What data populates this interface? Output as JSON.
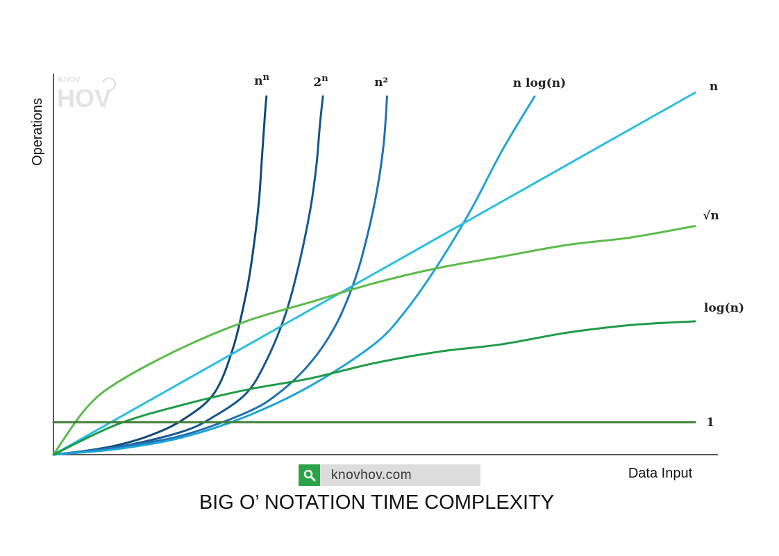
{
  "chart_data": {
    "type": "line",
    "title": "BIG O’ NOTATION TIME COMPLEXITY",
    "xlabel": "Data Input",
    "ylabel": "Operations",
    "grid": false,
    "legend": "curve-end labels",
    "series": [
      {
        "name": "nⁿ",
        "label_base": "n",
        "label_sup": "n",
        "color": "#0f4a79",
        "points": [
          [
            0,
            0
          ],
          [
            0.05,
            0.01
          ],
          [
            0.1,
            0.025
          ],
          [
            0.15,
            0.05
          ],
          [
            0.2,
            0.09
          ],
          [
            0.25,
            0.16
          ],
          [
            0.28,
            0.28
          ],
          [
            0.3,
            0.42
          ],
          [
            0.31,
            0.52
          ],
          [
            0.32,
            0.66
          ],
          [
            0.325,
            0.78
          ],
          [
            0.33,
            0.9
          ],
          [
            0.332,
            0.94
          ]
        ]
      },
      {
        "name": "2ⁿ",
        "label_base": "2",
        "label_sup": "n",
        "color": "#16568f",
        "points": [
          [
            0,
            0
          ],
          [
            0.1,
            0.02
          ],
          [
            0.2,
            0.06
          ],
          [
            0.25,
            0.1
          ],
          [
            0.3,
            0.16
          ],
          [
            0.33,
            0.24
          ],
          [
            0.36,
            0.36
          ],
          [
            0.38,
            0.48
          ],
          [
            0.4,
            0.64
          ],
          [
            0.41,
            0.76
          ],
          [
            0.415,
            0.86
          ],
          [
            0.42,
            0.94
          ]
        ]
      },
      {
        "name": "n²",
        "label_base": "n²",
        "color": "#1f72b2",
        "points": [
          [
            0,
            0
          ],
          [
            0.1,
            0.02
          ],
          [
            0.2,
            0.05
          ],
          [
            0.3,
            0.11
          ],
          [
            0.35,
            0.16
          ],
          [
            0.4,
            0.24
          ],
          [
            0.44,
            0.34
          ],
          [
            0.47,
            0.46
          ],
          [
            0.49,
            0.58
          ],
          [
            0.505,
            0.7
          ],
          [
            0.515,
            0.82
          ],
          [
            0.52,
            0.94
          ]
        ]
      },
      {
        "name": "n log(n)",
        "label_base": "n log(n)",
        "color": "#1fa3d8",
        "points": [
          [
            0,
            0
          ],
          [
            0.1,
            0.015
          ],
          [
            0.2,
            0.045
          ],
          [
            0.3,
            0.1
          ],
          [
            0.4,
            0.18
          ],
          [
            0.5,
            0.29
          ],
          [
            0.55,
            0.38
          ],
          [
            0.6,
            0.5
          ],
          [
            0.65,
            0.64
          ],
          [
            0.7,
            0.8
          ],
          [
            0.75,
            0.94
          ]
        ]
      },
      {
        "name": "n",
        "label_base": "n",
        "color": "#29bde3",
        "points": [
          [
            0,
            0
          ],
          [
            1,
            0.95
          ]
        ]
      },
      {
        "name": "√n",
        "label_base": "√n",
        "color": "#5cbb49",
        "points": [
          [
            0,
            0
          ],
          [
            0.05,
            0.12
          ],
          [
            0.1,
            0.19
          ],
          [
            0.2,
            0.28
          ],
          [
            0.3,
            0.35
          ],
          [
            0.4,
            0.4
          ],
          [
            0.5,
            0.45
          ],
          [
            0.6,
            0.49
          ],
          [
            0.7,
            0.52
          ],
          [
            0.8,
            0.55
          ],
          [
            0.9,
            0.57
          ],
          [
            1,
            0.6
          ]
        ]
      },
      {
        "name": "log(n)",
        "label_base": "log(n)",
        "color": "#1f9a46",
        "points": [
          [
            0,
            0
          ],
          [
            0.1,
            0.08
          ],
          [
            0.2,
            0.13
          ],
          [
            0.3,
            0.17
          ],
          [
            0.4,
            0.2
          ],
          [
            0.5,
            0.24
          ],
          [
            0.6,
            0.27
          ],
          [
            0.7,
            0.29
          ],
          [
            0.8,
            0.32
          ],
          [
            0.9,
            0.34
          ],
          [
            1,
            0.35
          ]
        ]
      },
      {
        "name": "1",
        "label_base": "1",
        "color": "#3f7d35",
        "points": [
          [
            0,
            0.085
          ],
          [
            1,
            0.085
          ]
        ]
      }
    ]
  },
  "site": {
    "text": "knovhov.com"
  },
  "watermark": {
    "top": "KNOV",
    "main": "HOV"
  }
}
